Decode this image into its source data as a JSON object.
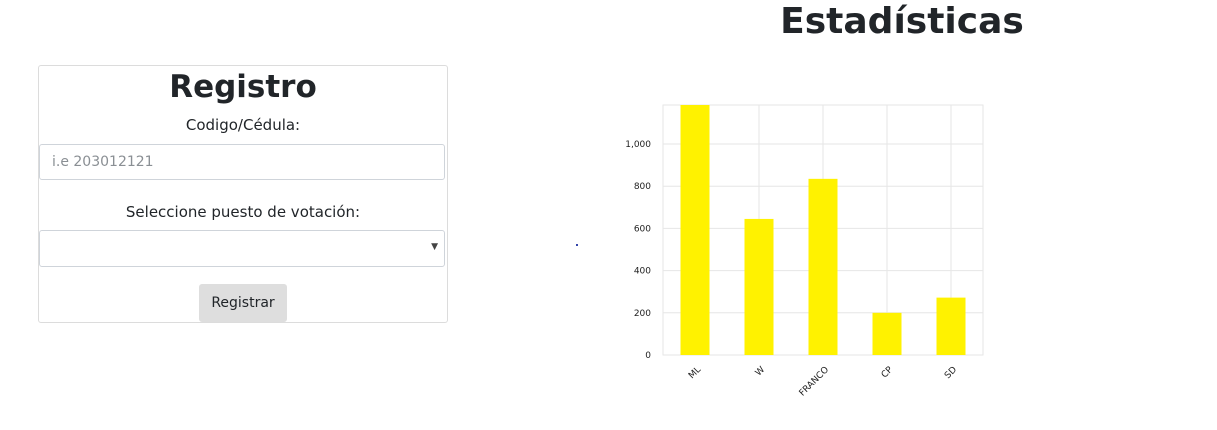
{
  "registro": {
    "title": "Registro",
    "code_label": "Codigo/Cédula:",
    "code_placeholder": "i.e 203012121",
    "code_value": "",
    "select_label": "Seleccione puesto de votación:",
    "select_value": "",
    "submit_label": "Registrar"
  },
  "stats": {
    "title": "Estadísticas"
  },
  "chart_data": {
    "type": "bar",
    "categories": [
      "ML",
      "W",
      "FRANCO",
      "CP",
      "SD"
    ],
    "values": [
      1185,
      645,
      835,
      200,
      272
    ],
    "ylim": [
      0,
      1185
    ],
    "yticks": [
      0,
      200,
      400,
      600,
      800,
      1000
    ],
    "ytick_labels": [
      "0",
      "200",
      "400",
      "600",
      "800",
      "1,000"
    ],
    "grid": true,
    "bar_color": "#fff200",
    "grid_color": "#e6e6e6"
  }
}
